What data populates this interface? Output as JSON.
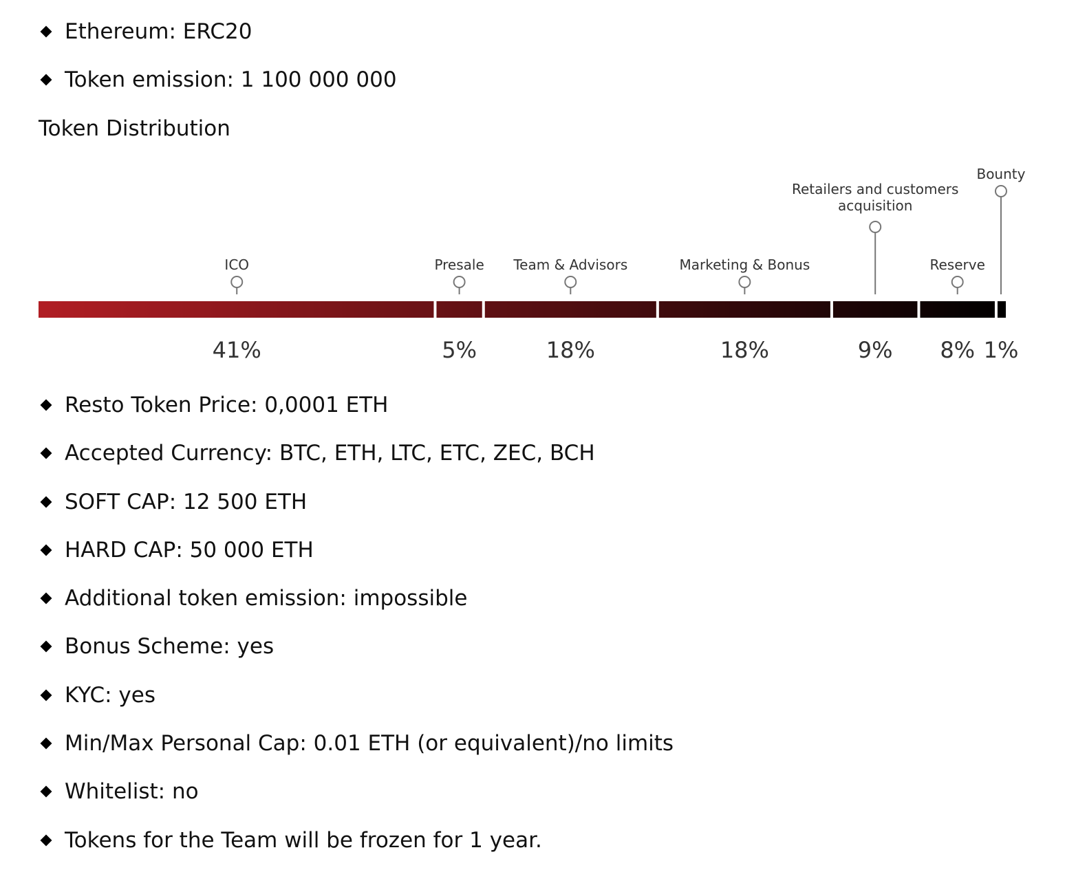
{
  "top_items": [
    {
      "text": "Ethereum: ERC20"
    },
    {
      "text": "Token emission: 1 100 000 000"
    }
  ],
  "heading": "Token Distribution",
  "chart_data": {
    "type": "bar",
    "layout": "stacked-horizontal",
    "gradient": [
      "#b11e24",
      "#000000"
    ],
    "segments": [
      {
        "label": "ICO",
        "value": 41,
        "value_label": "41%"
      },
      {
        "label": "Presale",
        "value": 5,
        "value_label": "5%"
      },
      {
        "label": "Team & Advisors",
        "value": 18,
        "value_label": "18%"
      },
      {
        "label": "Marketing & Bonus",
        "value": 18,
        "value_label": "18%"
      },
      {
        "label": "Retailers and customers",
        "label2": "acquisition",
        "value": 9,
        "value_label": "9%"
      },
      {
        "label": "Reserve",
        "value": 8,
        "value_label": "8%"
      },
      {
        "label": "Bounty",
        "value": 1,
        "value_label": "1%"
      }
    ]
  },
  "bottom_items": [
    {
      "text": "Resto Token Price: 0,0001 ETH"
    },
    {
      "text": "Accepted Currency: BTC, ETH, LTC, ETC, ZEC, BCH"
    },
    {
      "text": "SOFT CAP: 12 500 ETH"
    },
    {
      "text": "HARD CAP: 50 000 ETH"
    },
    {
      "text": "Additional token emission: impossible"
    },
    {
      "text": "Bonus Scheme: yes"
    },
    {
      "text": "KYC: yes"
    },
    {
      "text": "Min/Max Personal Cap: 0.01 ETH (or equivalent)/no limits"
    },
    {
      "text": "Whitelist: no"
    },
    {
      "text": "Tokens for the Team will be frozen for 1 year."
    }
  ]
}
